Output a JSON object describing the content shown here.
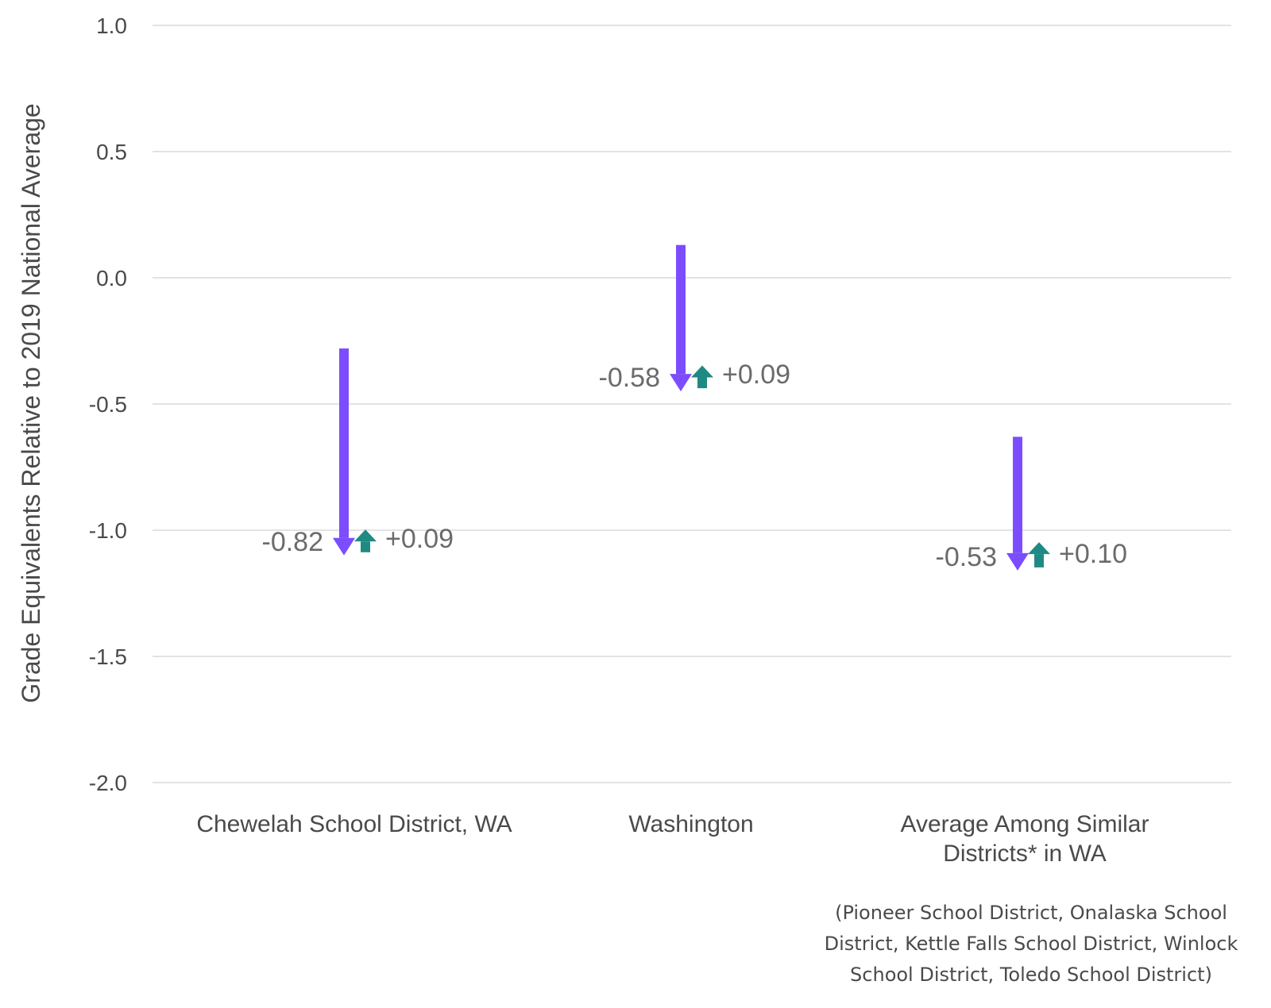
{
  "chart_data": {
    "type": "bar",
    "ylabel": "Grade Equivalents Relative to 2019 National Average",
    "ylim": [
      -2.0,
      1.0
    ],
    "yticks": [
      1.0,
      0.5,
      0.0,
      -0.5,
      -1.0,
      -1.5,
      -2.0
    ],
    "ytick_labels": [
      "1.0",
      "0.5",
      "0.0",
      "-0.5",
      "-1.0",
      "-1.5",
      "-2.0"
    ],
    "grid": true,
    "categories": [
      {
        "lines": [
          "Chewelah School District, WA"
        ],
        "start": -0.28,
        "decline": -0.82,
        "recovery": 0.09,
        "decline_label": "-0.82",
        "recovery_label": "+0.09"
      },
      {
        "lines": [
          "Washington"
        ],
        "start": 0.13,
        "decline": -0.58,
        "recovery": 0.09,
        "decline_label": "-0.58",
        "recovery_label": "+0.09"
      },
      {
        "lines": [
          "Average Among Similar",
          "Districts* in WA"
        ],
        "start": -0.63,
        "decline": -0.53,
        "recovery": 0.1,
        "decline_label": "-0.53",
        "recovery_label": "+0.10"
      }
    ],
    "footnote_lines": [
      "(Pioneer School District, Onalaska School",
      "District, Kettle Falls School District, Winlock",
      "School District, Toledo School District)"
    ],
    "colors": {
      "decline": "#7c4dff",
      "recovery": "#1f8a83",
      "grid": "#e3e3e3",
      "text": "#4a4a4a",
      "data_label": "#6b6b6b"
    }
  }
}
